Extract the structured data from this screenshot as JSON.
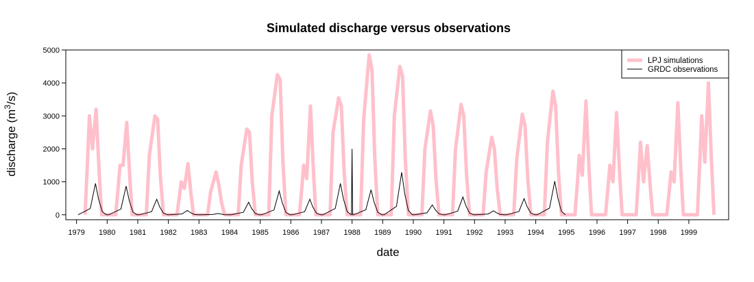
{
  "chart_data": {
    "type": "line",
    "title": "Simulated discharge versus observations",
    "xlabel": "date",
    "ylabel_main": "discharge (m",
    "ylabel_sup": "3",
    "ylabel_end": "/s)",
    "xlim": [
      1978.65,
      2000.3
    ],
    "ylim": [
      -150,
      5000
    ],
    "y_ticks": [
      0,
      1000,
      2000,
      3000,
      4000,
      5000
    ],
    "x_ticks": [
      "1979",
      "1980",
      "1981",
      "1982",
      "1983",
      "1984",
      "1985",
      "1986",
      "1987",
      "1988",
      "1989",
      "1990",
      "1991",
      "1992",
      "1993",
      "1994",
      "1995",
      "1996",
      "1997",
      "1998",
      "1999"
    ],
    "grid": false,
    "legend_position": "top-right",
    "colors": {
      "simulation": "#ffc0cb",
      "observation": "#000000"
    },
    "series": [
      {
        "name": "LPJ simulations",
        "style": "band",
        "peaks": [
          {
            "year": 1979,
            "p1": 3000,
            "p2": 3200,
            "low": 2000,
            "shape": "double"
          },
          {
            "year": 1980,
            "p1": 1500,
            "p2": 2800,
            "low": 1500,
            "shape": "double"
          },
          {
            "year": 1981,
            "p1": 3000,
            "p2": 2900,
            "low": 1800,
            "shape": "single"
          },
          {
            "year": 1982,
            "p1": 1000,
            "p2": 1550,
            "low": 800,
            "shape": "double"
          },
          {
            "year": 1983,
            "p1": 1300,
            "p2": 900,
            "low": 700,
            "shape": "single"
          },
          {
            "year": 1984,
            "p1": 2600,
            "p2": 2500,
            "low": 1500,
            "shape": "single"
          },
          {
            "year": 1985,
            "p1": 4250,
            "p2": 4100,
            "low": 3000,
            "shape": "single"
          },
          {
            "year": 1986,
            "p1": 1500,
            "p2": 3300,
            "low": 1100,
            "shape": "double"
          },
          {
            "year": 1987,
            "p1": 3550,
            "p2": 3300,
            "low": 2500,
            "shape": "single"
          },
          {
            "year": 1988,
            "p1": 4850,
            "p2": 4400,
            "low": 2900,
            "shape": "single"
          },
          {
            "year": 1989,
            "p1": 4500,
            "p2": 4200,
            "low": 3000,
            "shape": "single"
          },
          {
            "year": 1990,
            "p1": 3150,
            "p2": 2700,
            "low": 2000,
            "shape": "single"
          },
          {
            "year": 1991,
            "p1": 3350,
            "p2": 3000,
            "low": 2000,
            "shape": "single"
          },
          {
            "year": 1992,
            "p1": 2350,
            "p2": 2000,
            "low": 1300,
            "shape": "single"
          },
          {
            "year": 1993,
            "p1": 3050,
            "p2": 2700,
            "low": 1700,
            "shape": "single"
          },
          {
            "year": 1994,
            "p1": 3750,
            "p2": 3300,
            "low": 2200,
            "shape": "single"
          },
          {
            "year": 1995,
            "p1": 1800,
            "p2": 3450,
            "low": 1200,
            "shape": "double"
          },
          {
            "year": 1996,
            "p1": 1500,
            "p2": 3100,
            "low": 1000,
            "shape": "double"
          },
          {
            "year": 1997,
            "p1": 2200,
            "p2": 2100,
            "low": 1000,
            "shape": "double"
          },
          {
            "year": 1998,
            "p1": 1300,
            "p2": 3400,
            "low": 1000,
            "shape": "double"
          },
          {
            "year": 1999,
            "p1": 3000,
            "p2": 4000,
            "low": 1600,
            "shape": "double"
          }
        ]
      },
      {
        "name": "GRDC observations",
        "style": "line",
        "peaks": [
          {
            "year": 1979,
            "peak": 950
          },
          {
            "year": 1980,
            "peak": 870
          },
          {
            "year": 1981,
            "peak": 470
          },
          {
            "year": 1982,
            "peak": 130
          },
          {
            "year": 1983,
            "peak": 40
          },
          {
            "year": 1984,
            "peak": 380
          },
          {
            "year": 1985,
            "peak": 720
          },
          {
            "year": 1986,
            "peak": 470
          },
          {
            "year": 1987,
            "peak": 950
          },
          {
            "year": 1988,
            "peak": 760
          },
          {
            "year": 1989,
            "peak": 1290
          },
          {
            "year": 1990,
            "peak": 300
          },
          {
            "year": 1991,
            "peak": 540
          },
          {
            "year": 1992,
            "peak": 120
          },
          {
            "year": 1993,
            "peak": 490
          },
          {
            "year": 1994,
            "peak": 1020
          }
        ],
        "spike": {
          "x": 1988.0,
          "y": 2000
        }
      }
    ]
  }
}
